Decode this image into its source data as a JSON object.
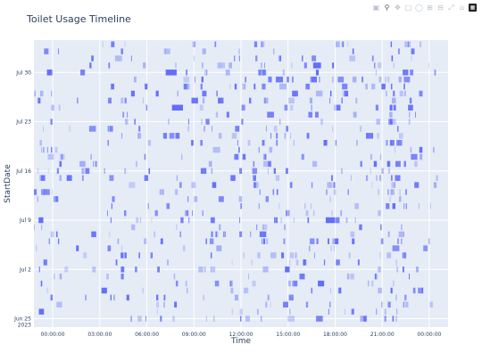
{
  "chart_data": {
    "type": "timeline",
    "title": "Toilet Usage Timeline",
    "xlabel": "Time",
    "ylabel": "StartDate",
    "x_tick_labels": [
      "00:00:00",
      "03:00:00",
      "06:00:00",
      "09:00:00",
      "12:00:00",
      "15:00:00",
      "18:00:00",
      "21:00:00",
      "00:00:00"
    ],
    "x_range_hours": [
      -1.2,
      25.2
    ],
    "y_ticks": [
      {
        "label": "Jun 25",
        "sublabel": "2023",
        "day": 0
      },
      {
        "label": "Jul 2",
        "day": 7
      },
      {
        "label": "Jul 9",
        "day": 14
      },
      {
        "label": "Jul 16",
        "day": 21
      },
      {
        "label": "Jul 23",
        "day": 28
      },
      {
        "label": "Jul 30",
        "day": 35
      }
    ],
    "y_range_days": [
      -1.2,
      39.6
    ],
    "day_count": 40,
    "bar_color": "#636efa",
    "plot_bg": "#e5ecf6",
    "grid": true,
    "highlighted_events": [
      {
        "day": 14,
        "start_hour": -0.9,
        "end_hour": -0.6
      },
      {
        "day": 14,
        "start_hour": 17.4,
        "end_hour": 18.0
      },
      {
        "day": 36,
        "start_hour": 16.6,
        "end_hour": 17.1
      },
      {
        "day": 7,
        "start_hour": 14.8,
        "end_hour": 15.1
      },
      {
        "day": 35,
        "start_hour": 7.2,
        "end_hour": 7.9
      },
      {
        "day": 30,
        "start_hour": 7.6,
        "end_hour": 8.3
      },
      {
        "day": 5,
        "start_hour": 16.9,
        "end_hour": 17.3
      }
    ]
  },
  "modebar": {
    "icons": [
      "camera-icon",
      "zoom-icon",
      "pan-icon",
      "box-select-icon",
      "lasso-icon",
      "zoom-in-icon",
      "zoom-out-icon",
      "autoscale-icon",
      "reset-axes-icon",
      "plotly-logo-icon"
    ]
  }
}
